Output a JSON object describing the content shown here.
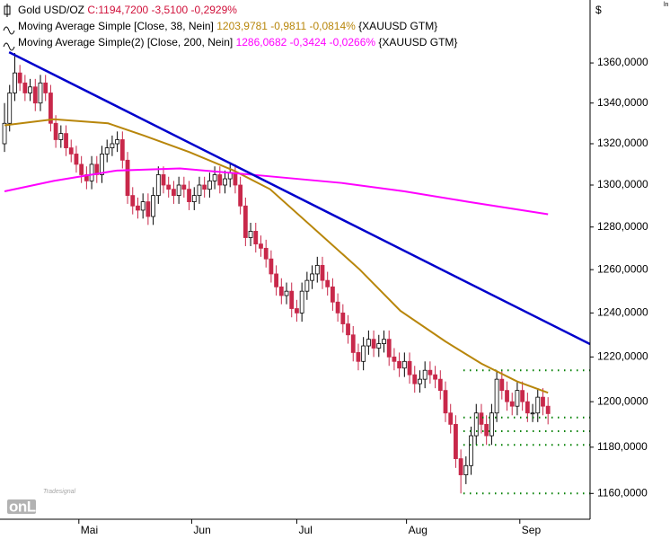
{
  "chart_data": {
    "type": "candlestick",
    "title": "Gold USD/OZ",
    "title_value": "C:1194,7200 -3,5100 -0,2929%",
    "title_value_color": "#d0103a",
    "currency_label": "$",
    "scale_label": "ln",
    "logo": {
      "brand": "Tradesignal",
      "text": "onLine"
    },
    "log_scale": true,
    "up_color": "#ffffff",
    "down_color": "#c8284a",
    "xlim": [
      -0.88,
      114.2
    ],
    "xticks": [
      {
        "value": 14.5,
        "label": "Mai"
      },
      {
        "value": 36.5,
        "label": "Jun"
      },
      {
        "value": 57,
        "label": "Jul"
      },
      {
        "value": 78.4,
        "label": "Aug"
      },
      {
        "value": 100.5,
        "label": "Sep"
      }
    ],
    "ylim": [
      1149,
      1392
    ],
    "yticks": [
      {
        "value": 1160,
        "label": "1160,0000"
      },
      {
        "value": 1180,
        "label": "1180,0000"
      },
      {
        "value": 1200,
        "label": "1200,0000"
      },
      {
        "value": 1220,
        "label": "1220,0000"
      },
      {
        "value": 1240,
        "label": "1240,0000"
      },
      {
        "value": 1260,
        "label": "1260,0000"
      },
      {
        "value": 1280,
        "label": "1280,0000"
      },
      {
        "value": 1300,
        "label": "1300,0000"
      },
      {
        "value": 1320,
        "label": "1320,0000"
      },
      {
        "value": 1340,
        "label": "1340,0000"
      },
      {
        "value": 1360,
        "label": "1360,0000"
      }
    ],
    "open": [
      1320,
      1330,
      1345,
      1355,
      1350,
      1345,
      1348,
      1340,
      1350,
      1345,
      1330,
      1322,
      1325,
      1318,
      1315,
      1310,
      1305,
      1302,
      1310,
      1305,
      1315,
      1318,
      1320,
      1322,
      1312,
      1295,
      1290,
      1288,
      1292,
      1285,
      1295,
      1305,
      1300,
      1298,
      1295,
      1300,
      1298,
      1292,
      1295,
      1300,
      1298,
      1302,
      1305,
      1300,
      1303,
      1306,
      1300,
      1290,
      1275,
      1278,
      1272,
      1270,
      1265,
      1258,
      1252,
      1248,
      1250,
      1242,
      1240,
      1250,
      1255,
      1258,
      1262,
      1255,
      1252,
      1245,
      1240,
      1235,
      1230,
      1222,
      1218,
      1225,
      1228,
      1224,
      1226,
      1228,
      1220,
      1218,
      1215,
      1218,
      1212,
      1208,
      1210,
      1214,
      1212,
      1210,
      1205,
      1195,
      1190,
      1175,
      1168,
      1172,
      1185,
      1195,
      1190,
      1185,
      1195,
      1210,
      1205,
      1200,
      1198,
      1205,
      1200,
      1195,
      1195,
      1202,
      1198
    ],
    "high": [
      1340,
      1349,
      1365,
      1359,
      1354,
      1352,
      1352,
      1354,
      1354,
      1349,
      1334,
      1329,
      1329,
      1322,
      1319,
      1314,
      1309,
      1314,
      1314,
      1319,
      1322,
      1324,
      1326,
      1326,
      1316,
      1299,
      1294,
      1296,
      1296,
      1299,
      1309,
      1309,
      1304,
      1302,
      1304,
      1304,
      1302,
      1299,
      1304,
      1304,
      1306,
      1309,
      1309,
      1307,
      1310,
      1310,
      1304,
      1294,
      1282,
      1282,
      1276,
      1274,
      1269,
      1262,
      1256,
      1254,
      1254,
      1246,
      1254,
      1259,
      1262,
      1266,
      1266,
      1259,
      1256,
      1249,
      1244,
      1239,
      1234,
      1226,
      1229,
      1232,
      1232,
      1230,
      1232,
      1232,
      1224,
      1222,
      1222,
      1222,
      1216,
      1214,
      1218,
      1218,
      1216,
      1214,
      1209,
      1199,
      1194,
      1179,
      1176,
      1189,
      1199,
      1199,
      1194,
      1199,
      1214,
      1214,
      1209,
      1204,
      1209,
      1209,
      1204,
      1199,
      1206,
      1206,
      1202
    ],
    "low": [
      1316,
      1326,
      1341,
      1346,
      1341,
      1341,
      1336,
      1336,
      1341,
      1326,
      1318,
      1318,
      1314,
      1311,
      1306,
      1301,
      1298,
      1298,
      1301,
      1301,
      1311,
      1314,
      1316,
      1308,
      1291,
      1286,
      1284,
      1284,
      1281,
      1281,
      1291,
      1296,
      1294,
      1291,
      1291,
      1294,
      1288,
      1288,
      1291,
      1294,
      1294,
      1298,
      1296,
      1296,
      1299,
      1296,
      1286,
      1271,
      1271,
      1268,
      1266,
      1261,
      1254,
      1248,
      1244,
      1244,
      1238,
      1236,
      1236,
      1246,
      1251,
      1254,
      1251,
      1248,
      1241,
      1236,
      1231,
      1226,
      1218,
      1214,
      1214,
      1221,
      1220,
      1220,
      1222,
      1216,
      1214,
      1211,
      1211,
      1208,
      1204,
      1204,
      1206,
      1208,
      1206,
      1201,
      1191,
      1186,
      1171,
      1160,
      1164,
      1168,
      1181,
      1186,
      1181,
      1181,
      1191,
      1201,
      1196,
      1194,
      1194,
      1196,
      1191,
      1191,
      1191,
      1194,
      1190
    ],
    "close": [
      1330,
      1345,
      1355,
      1350,
      1345,
      1348,
      1340,
      1350,
      1345,
      1330,
      1322,
      1325,
      1318,
      1315,
      1310,
      1305,
      1302,
      1310,
      1305,
      1315,
      1318,
      1320,
      1322,
      1312,
      1295,
      1290,
      1288,
      1292,
      1285,
      1295,
      1305,
      1300,
      1298,
      1295,
      1300,
      1298,
      1292,
      1295,
      1300,
      1298,
      1302,
      1305,
      1300,
      1303,
      1306,
      1300,
      1290,
      1275,
      1278,
      1272,
      1270,
      1265,
      1258,
      1252,
      1248,
      1250,
      1242,
      1240,
      1250,
      1255,
      1258,
      1262,
      1255,
      1252,
      1245,
      1240,
      1235,
      1230,
      1222,
      1218,
      1225,
      1228,
      1224,
      1226,
      1228,
      1220,
      1218,
      1215,
      1218,
      1212,
      1208,
      1210,
      1214,
      1212,
      1210,
      1205,
      1195,
      1190,
      1175,
      1168,
      1172,
      1185,
      1195,
      1190,
      1185,
      1195,
      1210,
      1205,
      1200,
      1198,
      1205,
      1200,
      1195,
      1195,
      1202,
      1198,
      1194.72
    ],
    "series": [
      {
        "name": "Moving Average Simple [Close, 38, Nein]",
        "value_text": "1203,9781 -0,9811 -0,0814%",
        "symbol": "{XAUUSD GTM}",
        "color": "#b8860b",
        "x": [
          0,
          9.6,
          20.2,
          27.2,
          36,
          44.7,
          51.8,
          60.5,
          69.3,
          77.2,
          86,
          93,
          100,
          106
        ],
        "values": [
          1329,
          1332,
          1330,
          1324,
          1316,
          1307,
          1298,
          1279,
          1260,
          1241,
          1227,
          1217,
          1209,
          1203.98
        ]
      },
      {
        "name": "Moving Average Simple(2) [Close, 200, Nein]",
        "value_text": "1286,0682 -0,3424 -0,0266%",
        "symbol": "{XAUUSD GTM}",
        "color": "#ff00ff",
        "x": [
          0,
          9.6,
          21.9,
          34.2,
          48.2,
          65.8,
          78,
          90.4,
          106
        ],
        "values": [
          1297,
          1302,
          1307,
          1308,
          1305,
          1301,
          1297,
          1292,
          1286.07
        ]
      }
    ],
    "trendline": {
      "color": "#0000cc",
      "x": [
        0.9,
        114.2
      ],
      "values": [
        1365.4,
        1225.8
      ]
    },
    "levels": {
      "color": "#008000",
      "start": 89.5,
      "values": [
        1214,
        1193,
        1187,
        1181,
        1160
      ]
    }
  }
}
